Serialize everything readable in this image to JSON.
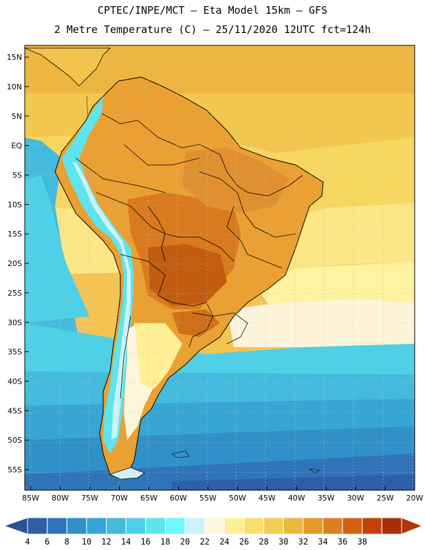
{
  "header": {
    "line1": "CPTEC/INPE/MCT –  Eta Model 15km – GFS",
    "line2": "2 Metre Temperature (C) – 25/11/2020 12UTC fct=124h"
  },
  "map": {
    "lat_labels": [
      "15N",
      "10N",
      "5N",
      "EQ",
      "5S",
      "10S",
      "15S",
      "20S",
      "25S",
      "30S",
      "35S",
      "40S",
      "45S",
      "50S",
      "55S"
    ],
    "lon_labels": [
      "85W",
      "80W",
      "75W",
      "70W",
      "65W",
      "60W",
      "55W",
      "50W",
      "45W",
      "40W",
      "35W",
      "30W",
      "25W",
      "20W"
    ],
    "lat_values": [
      15,
      10,
      5,
      0,
      -5,
      -10,
      -15,
      -20,
      -25,
      -30,
      -35,
      -40,
      -45,
      -50,
      -55
    ],
    "lon_values": [
      -85,
      -80,
      -75,
      -70,
      -65,
      -60,
      -55,
      -50,
      -45,
      -40,
      -35,
      -30,
      -25,
      -20
    ],
    "lat_range": [
      -58.5,
      17
    ],
    "lon_range": [
      -86,
      -20
    ]
  },
  "colorbar": {
    "labels": [
      "4",
      "6",
      "8",
      "10",
      "12",
      "14",
      "16",
      "18",
      "20",
      "22",
      "24",
      "26",
      "28",
      "30",
      "32",
      "34",
      "36",
      "38"
    ],
    "colors": [
      "#2d5ea8",
      "#2f74b8",
      "#3190c8",
      "#37a6d4",
      "#44bade",
      "#4fd0e6",
      "#5ee4ee",
      "#70f8f8",
      "#cdf2fb",
      "#fdf6dc",
      "#fff095",
      "#f8df6e",
      "#f3cd55",
      "#ecb73c",
      "#e49a2a",
      "#df7e1f",
      "#d65f12",
      "#c2420c",
      "#a83009"
    ],
    "low_color": "#2b5095",
    "high_color": "#b03508"
  }
}
